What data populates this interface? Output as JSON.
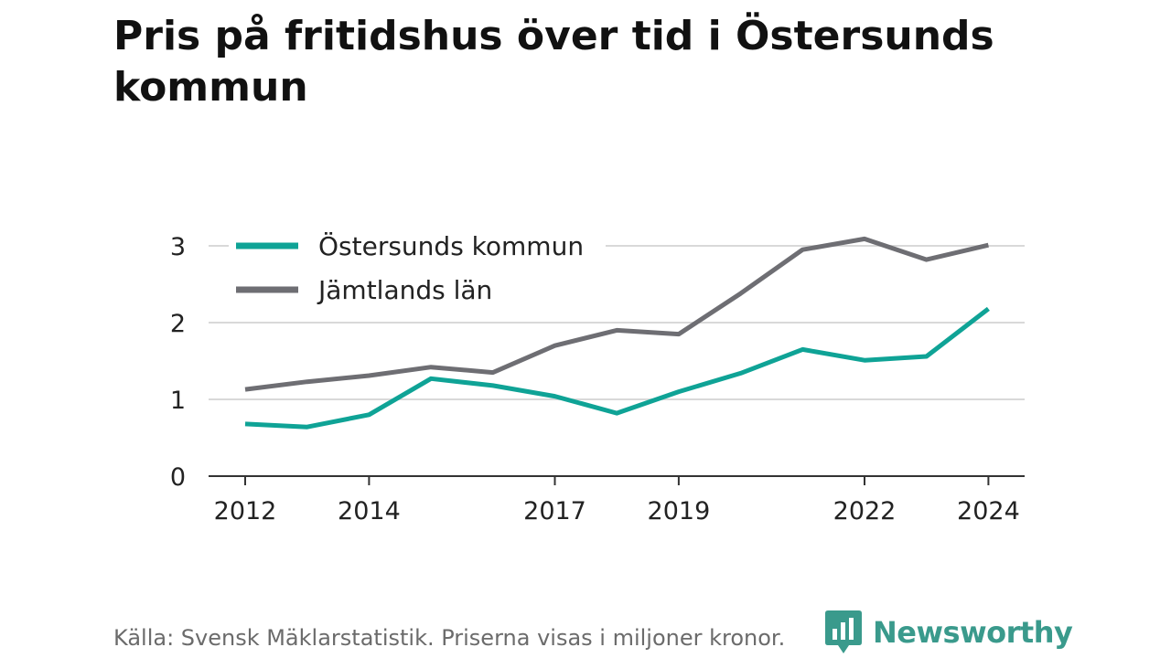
{
  "title": "Pris på fritidshus över tid i Östersunds kommun",
  "footer": {
    "source": "Källa: Svensk Mäklarstatistik. Priserna visas i miljoner kronor.",
    "brand": "Newsworthy",
    "brand_icon": "bar-chart-speech-bubble-icon"
  },
  "colors": {
    "series_1": "#0fa396",
    "series_2": "#6e6e73",
    "grid": "#d9d9d9",
    "axis": "#333333",
    "brand": "#3a9a8c"
  },
  "chart_data": {
    "type": "line",
    "title": "Pris på fritidshus över tid i Östersunds kommun",
    "xlabel": "",
    "ylabel": "",
    "x": [
      2012,
      2013,
      2014,
      2015,
      2016,
      2017,
      2018,
      2019,
      2020,
      2021,
      2022,
      2023,
      2024
    ],
    "x_ticks": [
      "2012",
      "2014",
      "2017",
      "2019",
      "2022",
      "2024"
    ],
    "y_ticks": [
      "0",
      "1",
      "2",
      "3"
    ],
    "ylim": [
      0,
      3.3
    ],
    "grid": true,
    "legend_position": "top-left",
    "series": [
      {
        "name": "Östersunds kommun",
        "color": "#0fa396",
        "values": [
          0.68,
          0.64,
          0.8,
          1.27,
          1.18,
          1.04,
          0.82,
          1.1,
          1.34,
          1.65,
          1.51,
          1.56,
          2.18
        ]
      },
      {
        "name": "Jämtlands län",
        "color": "#6e6e73",
        "values": [
          1.13,
          1.23,
          1.31,
          1.42,
          1.35,
          1.7,
          1.9,
          1.85,
          2.38,
          2.95,
          3.09,
          2.82,
          3.01
        ]
      }
    ]
  }
}
